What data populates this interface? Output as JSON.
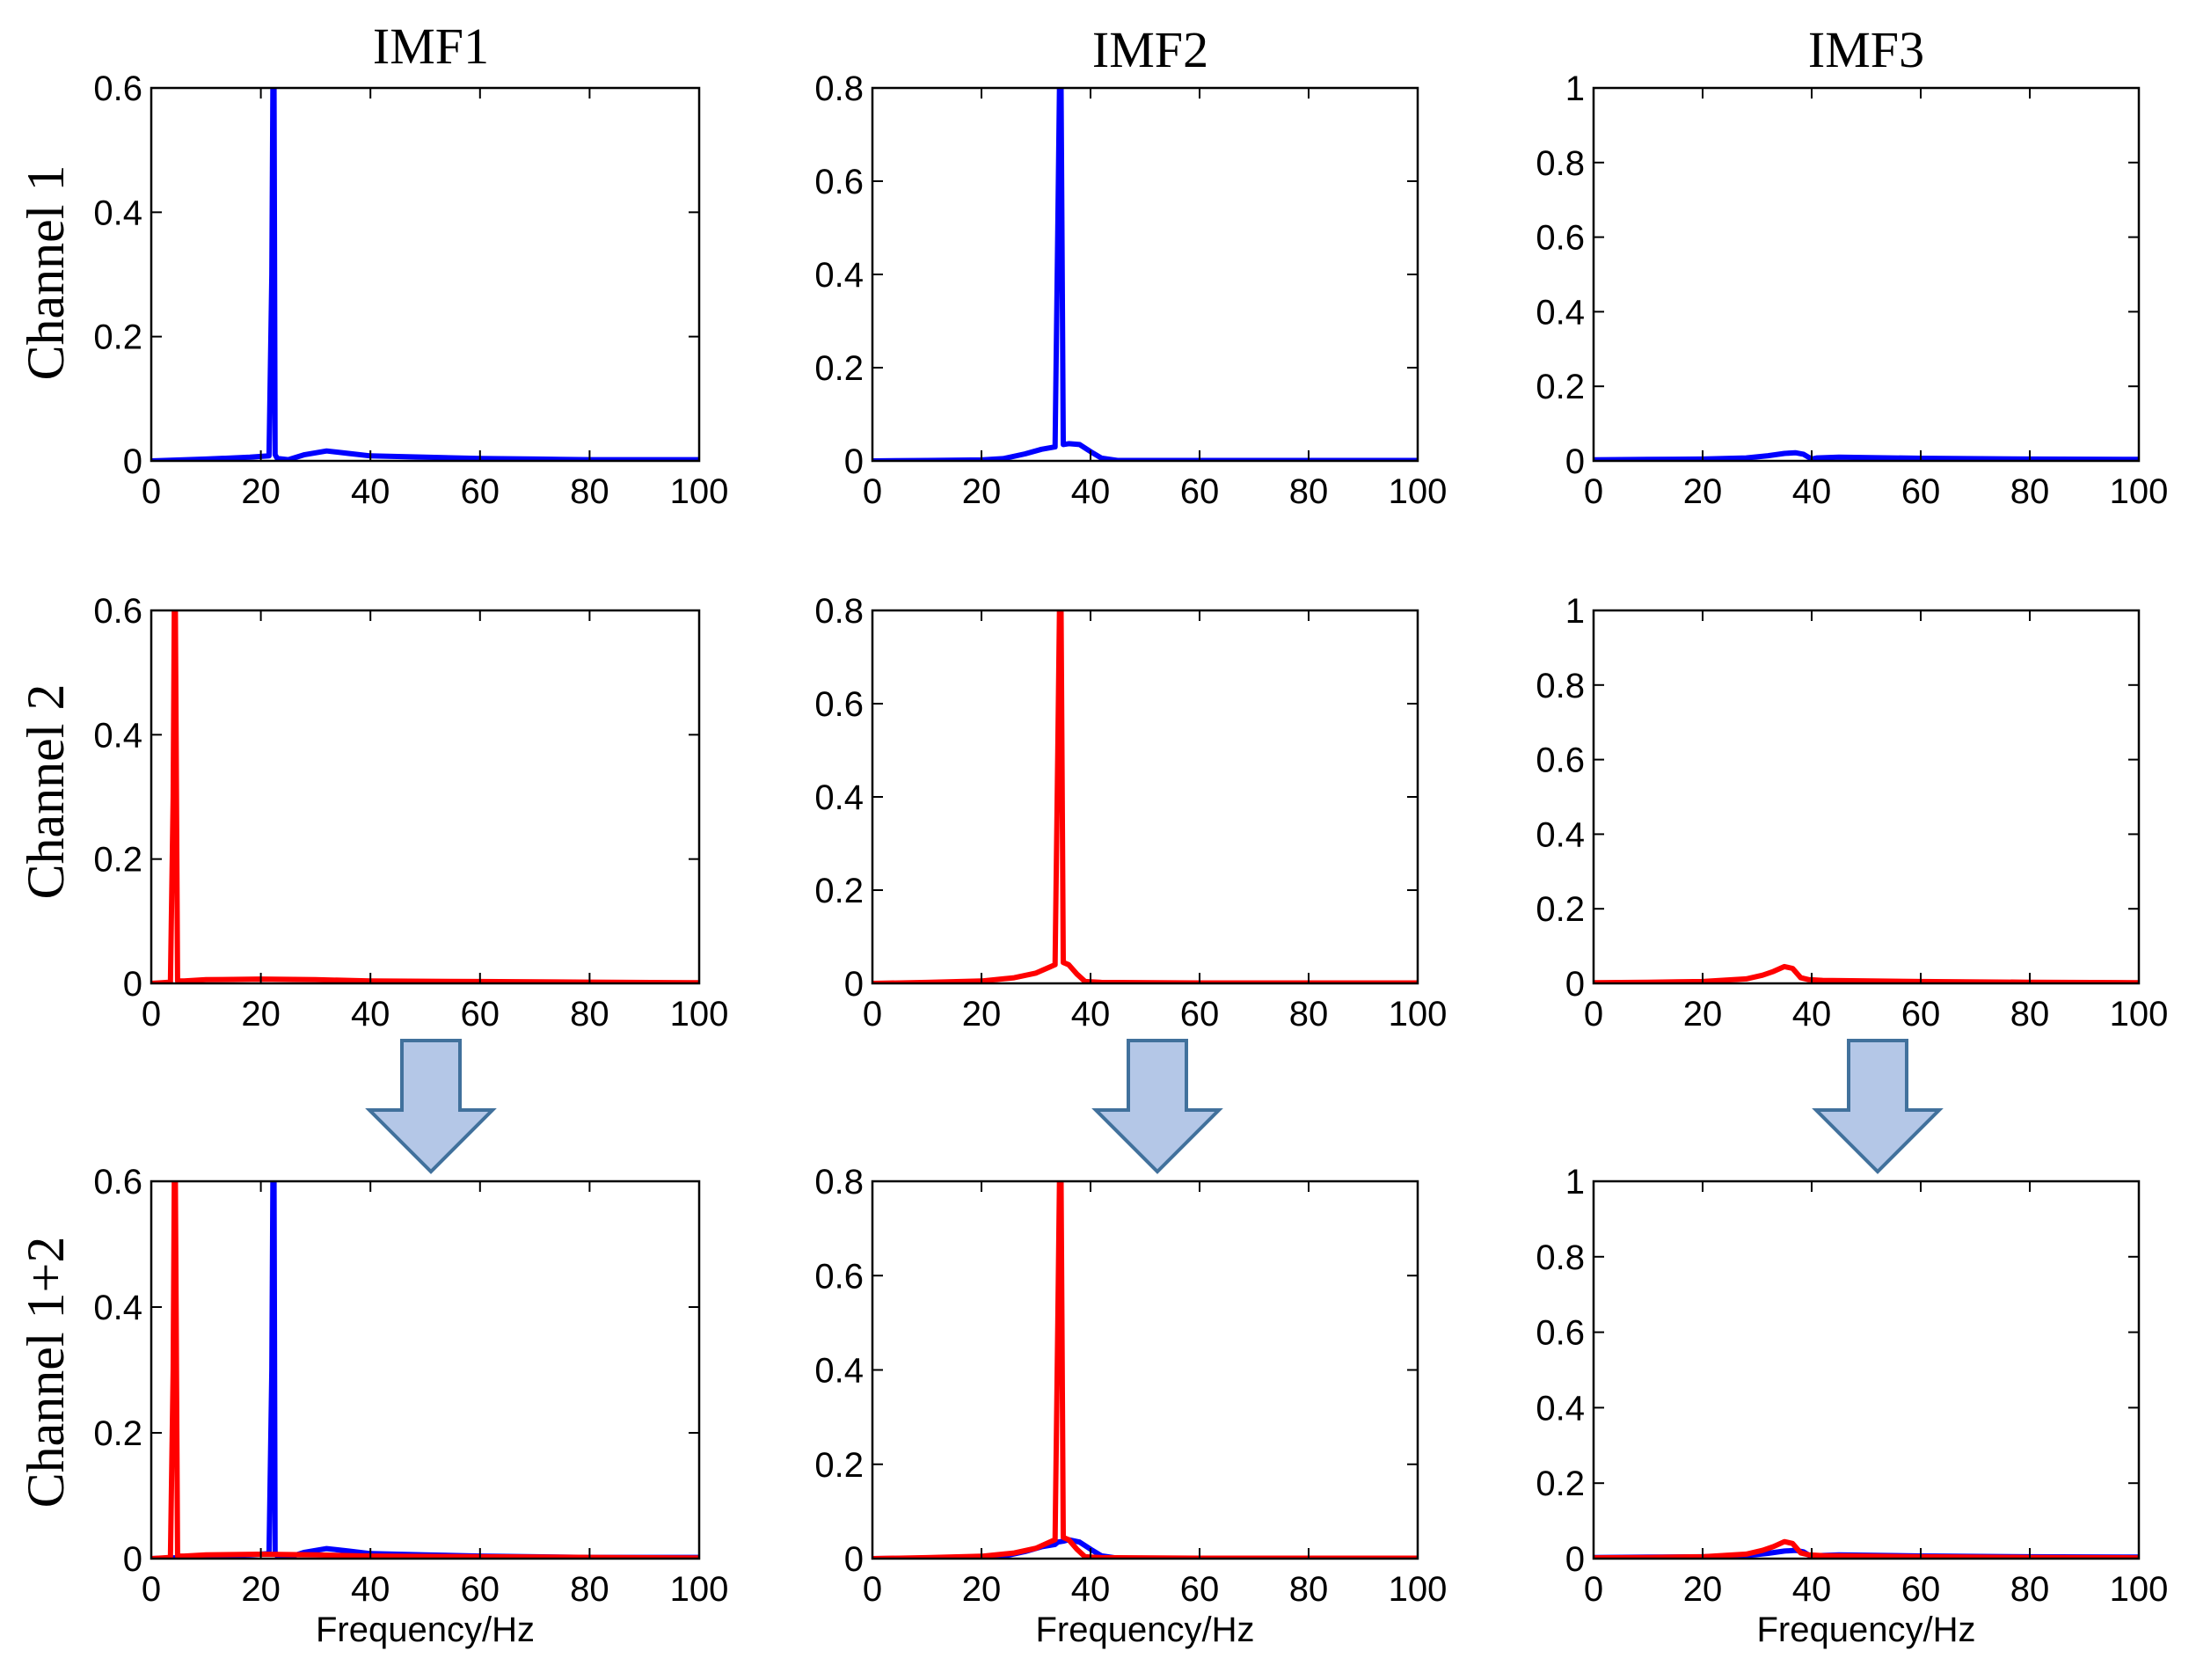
{
  "colors": {
    "channel1": "#0000ff",
    "channel2": "#ff0000",
    "arrow_fill": "#b4c7e7",
    "arrow_stroke": "#41719c"
  },
  "column_titles": [
    "IMF1",
    "IMF2",
    "IMF3"
  ],
  "row_labels": [
    "Channel 1",
    "Channel 2",
    "Channel 1+2"
  ],
  "arrow_icon": "down-arrow-icon",
  "chart_data": [
    {
      "type": "line",
      "row": 1,
      "col": 1,
      "title": "",
      "xlabel": "",
      "ylabel": "",
      "xlim": [
        0,
        100
      ],
      "ylim": [
        0,
        0.6
      ],
      "xticks": [
        0,
        20,
        40,
        60,
        80,
        100
      ],
      "xtick_labels": [
        "0",
        "20",
        "40",
        "60",
        "80",
        "100"
      ],
      "yticks": [
        0,
        0.2,
        0.4,
        0.6
      ],
      "ytick_labels": [
        "0",
        "0.2",
        "0.4",
        "0.6"
      ],
      "grid": false,
      "series": [
        {
          "color_key": "channel1",
          "x": [
            0,
            10,
            18,
            21.5,
            22.0,
            22.2,
            22.4,
            22.6,
            23.0,
            25,
            28,
            32,
            36,
            40,
            50,
            60,
            70,
            80,
            90,
            100
          ],
          "y": [
            0,
            0.003,
            0.006,
            0.008,
            0.3,
            0.6,
            0.6,
            0.01,
            0.004,
            0.002,
            0.01,
            0.016,
            0.012,
            0.008,
            0.006,
            0.004,
            0.003,
            0.002,
            0.002,
            0.002
          ]
        }
      ]
    },
    {
      "type": "line",
      "row": 1,
      "col": 2,
      "title": "",
      "xlabel": "",
      "ylabel": "",
      "xlim": [
        0,
        100
      ],
      "ylim": [
        0,
        0.8
      ],
      "xticks": [
        0,
        20,
        40,
        60,
        80,
        100
      ],
      "xtick_labels": [
        "0",
        "20",
        "40",
        "60",
        "80",
        "100"
      ],
      "yticks": [
        0,
        0.2,
        0.4,
        0.6,
        0.8
      ],
      "ytick_labels": [
        "0",
        "0.2",
        "0.4",
        "0.6",
        "0.8"
      ],
      "grid": false,
      "series": [
        {
          "color_key": "channel1",
          "x": [
            0,
            10,
            20,
            24,
            28,
            31,
            33.5,
            34.0,
            34.3,
            34.6,
            35.0,
            36,
            38,
            40,
            42,
            45,
            60,
            80,
            100
          ],
          "y": [
            0,
            0.001,
            0.002,
            0.005,
            0.015,
            0.025,
            0.03,
            0.5,
            0.8,
            0.8,
            0.035,
            0.037,
            0.035,
            0.02,
            0.006,
            0.001,
            0.001,
            0.001,
            0.001
          ]
        }
      ]
    },
    {
      "type": "line",
      "row": 1,
      "col": 3,
      "title": "",
      "xlabel": "",
      "ylabel": "",
      "xlim": [
        0,
        100
      ],
      "ylim": [
        0,
        1
      ],
      "xticks": [
        0,
        20,
        40,
        60,
        80,
        100
      ],
      "xtick_labels": [
        "0",
        "20",
        "40",
        "60",
        "80",
        "100"
      ],
      "yticks": [
        0,
        0.2,
        0.4,
        0.6,
        0.8,
        1
      ],
      "ytick_labels": [
        "0",
        "0.2",
        "0.4",
        "0.6",
        "0.8",
        "1"
      ],
      "grid": false,
      "series": [
        {
          "color_key": "channel1",
          "x": [
            0,
            10,
            20,
            28,
            32,
            35,
            37,
            38.5,
            40,
            41,
            45,
            60,
            80,
            100
          ],
          "y": [
            0.003,
            0.004,
            0.005,
            0.008,
            0.014,
            0.02,
            0.022,
            0.018,
            0.005,
            0.008,
            0.01,
            0.007,
            0.005,
            0.004
          ]
        }
      ]
    },
    {
      "type": "line",
      "row": 2,
      "col": 1,
      "title": "",
      "xlabel": "",
      "ylabel": "",
      "xlim": [
        0,
        100
      ],
      "ylim": [
        0,
        0.6
      ],
      "xticks": [
        0,
        20,
        40,
        60,
        80,
        100
      ],
      "xtick_labels": [
        "0",
        "20",
        "40",
        "60",
        "80",
        "100"
      ],
      "yticks": [
        0,
        0.2,
        0.4,
        0.6
      ],
      "ytick_labels": [
        "0",
        "0.2",
        "0.4",
        "0.6"
      ],
      "grid": false,
      "series": [
        {
          "color_key": "channel2",
          "x": [
            0,
            2,
            3.5,
            4.0,
            4.2,
            4.4,
            4.8,
            6,
            10,
            20,
            30,
            40,
            60,
            80,
            100
          ],
          "y": [
            0,
            0.001,
            0.002,
            0.3,
            0.6,
            0.6,
            0.004,
            0.004,
            0.006,
            0.007,
            0.006,
            0.004,
            0.003,
            0.002,
            0.001
          ]
        }
      ]
    },
    {
      "type": "line",
      "row": 2,
      "col": 2,
      "title": "",
      "xlabel": "",
      "ylabel": "",
      "xlim": [
        0,
        100
      ],
      "ylim": [
        0,
        0.8
      ],
      "xticks": [
        0,
        20,
        40,
        60,
        80,
        100
      ],
      "xtick_labels": [
        "0",
        "20",
        "40",
        "60",
        "80",
        "100"
      ],
      "yticks": [
        0,
        0.2,
        0.4,
        0.6,
        0.8
      ],
      "ytick_labels": [
        "0",
        "0.2",
        "0.4",
        "0.6",
        "0.8"
      ],
      "grid": false,
      "series": [
        {
          "color_key": "channel2",
          "x": [
            0,
            10,
            20,
            26,
            30,
            32.5,
            33.5,
            34.0,
            34.3,
            34.6,
            35.0,
            36,
            37.5,
            39,
            42,
            60,
            80,
            100
          ],
          "y": [
            0,
            0.002,
            0.005,
            0.012,
            0.022,
            0.035,
            0.04,
            0.5,
            0.8,
            0.8,
            0.045,
            0.04,
            0.02,
            0.004,
            0.002,
            0.001,
            0.001,
            0.001
          ]
        }
      ]
    },
    {
      "type": "line",
      "row": 2,
      "col": 3,
      "title": "",
      "xlabel": "",
      "ylabel": "",
      "xlim": [
        0,
        100
      ],
      "ylim": [
        0,
        1
      ],
      "xticks": [
        0,
        20,
        40,
        60,
        80,
        100
      ],
      "xtick_labels": [
        "0",
        "20",
        "40",
        "60",
        "80",
        "100"
      ],
      "yticks": [
        0,
        0.2,
        0.4,
        0.6,
        0.8,
        1
      ],
      "ytick_labels": [
        "0",
        "0.2",
        "0.4",
        "0.6",
        "0.8",
        "1"
      ],
      "grid": false,
      "series": [
        {
          "color_key": "channel2",
          "x": [
            0,
            10,
            20,
            28,
            31,
            33,
            35,
            36.5,
            38,
            39.5,
            42,
            60,
            80,
            100
          ],
          "y": [
            0.002,
            0.003,
            0.005,
            0.012,
            0.022,
            0.032,
            0.045,
            0.04,
            0.015,
            0.01,
            0.008,
            0.005,
            0.003,
            0.002
          ]
        }
      ]
    },
    {
      "type": "line",
      "row": 3,
      "col": 1,
      "title": "",
      "xlabel": "Frequency/Hz",
      "ylabel": "",
      "xlim": [
        0,
        100
      ],
      "ylim": [
        0,
        0.6
      ],
      "xticks": [
        0,
        20,
        40,
        60,
        80,
        100
      ],
      "xtick_labels": [
        "0",
        "20",
        "40",
        "60",
        "80",
        "100"
      ],
      "yticks": [
        0,
        0.2,
        0.4,
        0.6
      ],
      "ytick_labels": [
        "0",
        "0.2",
        "0.4",
        "0.6"
      ],
      "grid": false,
      "series": [
        {
          "color_key": "channel1",
          "x": [
            0,
            10,
            18,
            21.5,
            22.0,
            22.2,
            22.4,
            22.6,
            23.0,
            25,
            28,
            32,
            36,
            40,
            50,
            60,
            70,
            80,
            90,
            100
          ],
          "y": [
            0,
            0.003,
            0.006,
            0.008,
            0.3,
            0.6,
            0.6,
            0.01,
            0.004,
            0.002,
            0.01,
            0.016,
            0.012,
            0.008,
            0.006,
            0.004,
            0.003,
            0.002,
            0.002,
            0.002
          ]
        },
        {
          "color_key": "channel2",
          "x": [
            0,
            2,
            3.5,
            4.0,
            4.2,
            4.4,
            4.8,
            6,
            10,
            20,
            30,
            40,
            60,
            80,
            100
          ],
          "y": [
            0,
            0.001,
            0.002,
            0.3,
            0.6,
            0.6,
            0.004,
            0.004,
            0.006,
            0.007,
            0.006,
            0.004,
            0.003,
            0.002,
            0.001
          ]
        }
      ]
    },
    {
      "type": "line",
      "row": 3,
      "col": 2,
      "title": "",
      "xlabel": "Frequency/Hz",
      "ylabel": "",
      "xlim": [
        0,
        100
      ],
      "ylim": [
        0,
        0.8
      ],
      "xticks": [
        0,
        20,
        40,
        60,
        80,
        100
      ],
      "xtick_labels": [
        "0",
        "20",
        "40",
        "60",
        "80",
        "100"
      ],
      "yticks": [
        0,
        0.2,
        0.4,
        0.6,
        0.8
      ],
      "ytick_labels": [
        "0",
        "0.2",
        "0.4",
        "0.6",
        "0.8"
      ],
      "grid": false,
      "series": [
        {
          "color_key": "channel1",
          "x": [
            0,
            10,
            20,
            24,
            28,
            31,
            33.5,
            34.0,
            35.0,
            36,
            38,
            40,
            42,
            45,
            60,
            80,
            100
          ],
          "y": [
            0,
            0.001,
            0.002,
            0.005,
            0.015,
            0.025,
            0.03,
            0.035,
            0.037,
            0.04,
            0.035,
            0.02,
            0.006,
            0.001,
            0.001,
            0.001,
            0.001
          ]
        },
        {
          "color_key": "channel2",
          "x": [
            0,
            10,
            20,
            26,
            30,
            32.5,
            33.5,
            34.0,
            34.3,
            34.6,
            35.0,
            36,
            37.5,
            39,
            42,
            60,
            80,
            100
          ],
          "y": [
            0,
            0.002,
            0.005,
            0.012,
            0.022,
            0.035,
            0.04,
            0.5,
            0.8,
            0.8,
            0.045,
            0.04,
            0.02,
            0.004,
            0.002,
            0.001,
            0.001,
            0.001
          ]
        }
      ]
    },
    {
      "type": "line",
      "row": 3,
      "col": 3,
      "title": "",
      "xlabel": "Frequency/Hz",
      "ylabel": "",
      "xlim": [
        0,
        100
      ],
      "ylim": [
        0,
        1
      ],
      "xticks": [
        0,
        20,
        40,
        60,
        80,
        100
      ],
      "xtick_labels": [
        "0",
        "20",
        "40",
        "60",
        "80",
        "100"
      ],
      "yticks": [
        0,
        0.2,
        0.4,
        0.6,
        0.8,
        1
      ],
      "ytick_labels": [
        "0",
        "0.2",
        "0.4",
        "0.6",
        "0.8",
        "1"
      ],
      "grid": false,
      "series": [
        {
          "color_key": "channel1",
          "x": [
            0,
            10,
            20,
            28,
            32,
            35,
            37,
            38.5,
            40,
            41,
            45,
            60,
            80,
            100
          ],
          "y": [
            0.003,
            0.004,
            0.005,
            0.008,
            0.014,
            0.02,
            0.022,
            0.018,
            0.005,
            0.008,
            0.01,
            0.007,
            0.005,
            0.004
          ]
        },
        {
          "color_key": "channel2",
          "x": [
            0,
            10,
            20,
            28,
            31,
            33,
            35,
            36.5,
            38,
            39.5,
            42,
            60,
            80,
            100
          ],
          "y": [
            0.002,
            0.003,
            0.005,
            0.012,
            0.022,
            0.032,
            0.045,
            0.04,
            0.015,
            0.01,
            0.008,
            0.005,
            0.003,
            0.002
          ]
        }
      ]
    }
  ]
}
